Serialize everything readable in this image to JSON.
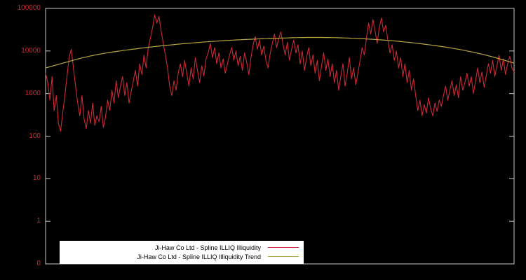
{
  "page": {
    "background": "#000000",
    "frame_color": "#c8c8c8"
  },
  "chart_data": {
    "type": "line",
    "title": "",
    "xlabel": "",
    "ylabel": "",
    "x_axis": {
      "tick_labels": []
    },
    "y_axis": {
      "scale": "log",
      "range": [
        0.1,
        100000
      ],
      "tick_labels": [
        "100000",
        "10000",
        "1000",
        "100",
        "10",
        "1",
        "0"
      ],
      "tick_values": [
        100000,
        10000,
        1000,
        100,
        10,
        1,
        0.1
      ],
      "label_color": "#cc2936"
    },
    "legend": {
      "position": "bottom-left",
      "background": "#ffffff"
    },
    "series": [
      {
        "name": "Ji-Haw Co Ltd - Spline ILLIQ Illiquidity",
        "color": "#cc2936",
        "x_range_percent": [
          0,
          100
        ],
        "values": [
          3000,
          1800,
          700,
          2500,
          400,
          900,
          200,
          130,
          350,
          900,
          2500,
          7000,
          11000,
          4000,
          1500,
          600,
          300,
          900,
          250,
          150,
          400,
          200,
          600,
          180,
          300,
          220,
          500,
          160,
          280,
          700,
          400,
          1200,
          600,
          2000,
          800,
          1500,
          2500,
          900,
          1800,
          600,
          1100,
          2000,
          3500,
          1500,
          5000,
          2800,
          8000,
          4000,
          12000,
          20000,
          35000,
          70000,
          45000,
          65000,
          30000,
          15000,
          8000,
          4000,
          1500,
          900,
          2000,
          1200,
          3000,
          5000,
          2500,
          6000,
          3000,
          1500,
          4000,
          2200,
          7000,
          3500,
          1800,
          4500,
          2600,
          6500,
          9000,
          15000,
          7000,
          12000,
          5000,
          9000,
          4000,
          6500,
          3000,
          5000,
          8000,
          12000,
          6000,
          10000,
          4500,
          7500,
          3500,
          9000,
          5500,
          2800,
          7000,
          14000,
          22000,
          11000,
          18000,
          8000,
          13000,
          6000,
          4000,
          9000,
          15000,
          25000,
          12000,
          20000,
          28000,
          14000,
          8000,
          16000,
          6000,
          11000,
          18000,
          9000,
          14000,
          5000,
          10000,
          3500,
          7000,
          12000,
          4500,
          8000,
          3000,
          6000,
          2000,
          4500,
          9000,
          3500,
          6500,
          2500,
          5000,
          1800,
          3500,
          1200,
          2500,
          5000,
          1500,
          3000,
          7000,
          2200,
          4000,
          1600,
          3000,
          6000,
          12000,
          8000,
          20000,
          45000,
          25000,
          55000,
          30000,
          15000,
          35000,
          60000,
          28000,
          40000,
          18000,
          9000,
          14000,
          6000,
          10000,
          4000,
          7000,
          2500,
          5000,
          1800,
          3500,
          1200,
          2200,
          900,
          400,
          700,
          300,
          550,
          350,
          800,
          450,
          300,
          600,
          380,
          700,
          500,
          900,
          1500,
          700,
          1200,
          2000,
          900,
          1600,
          800,
          2500,
          1200,
          1800,
          3000,
          1500,
          2500,
          1000,
          2000,
          4000,
          1800,
          3200,
          1400,
          2600,
          5000,
          3000,
          6000,
          2500,
          4500,
          8000,
          3500,
          6500,
          2800,
          5000,
          7500,
          4000,
          3200
        ]
      },
      {
        "name": "Ji-Haw Co Ltd - Spline ILLIQ Illiquidity Trend",
        "color": "#b5a642",
        "anchors": [
          [
            0,
            4000
          ],
          [
            10,
            7800
          ],
          [
            20,
            11500
          ],
          [
            30,
            15000
          ],
          [
            40,
            18000
          ],
          [
            50,
            20000
          ],
          [
            57,
            20800
          ],
          [
            65,
            20000
          ],
          [
            75,
            17000
          ],
          [
            85,
            12500
          ],
          [
            93,
            8500
          ],
          [
            100,
            5200
          ]
        ]
      }
    ]
  }
}
